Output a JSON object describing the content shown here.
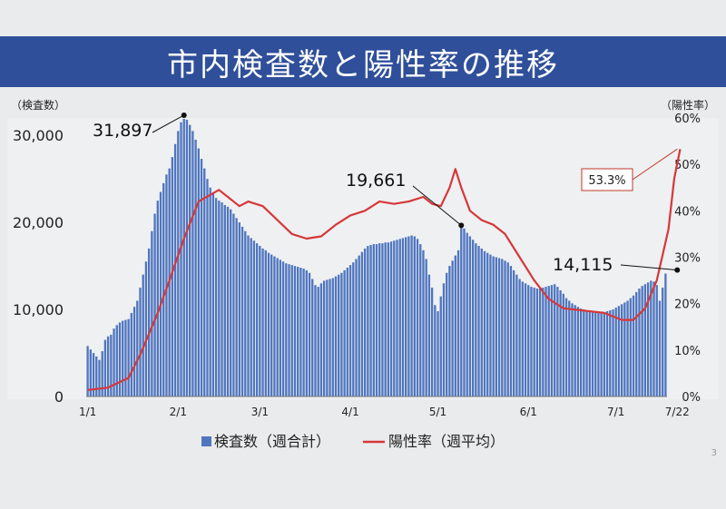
{
  "title": "市内検査数と陽性率の推移",
  "page_number": "3",
  "colors": {
    "bar": "#4f75bf",
    "line": "#d6373a",
    "title_bg": "#2f4f9a"
  },
  "chart_data": {
    "type": "bar+line",
    "title": "市内検査数と陽性率の推移",
    "left_axis_label": "（検査数）",
    "right_axis_label": "（陽性率）",
    "left_ticks": [
      "0",
      "10,000",
      "20,000",
      "30,000"
    ],
    "right_ticks": [
      "0%",
      "10%",
      "20%",
      "30%",
      "40%",
      "50%",
      "60%"
    ],
    "x_ticks": [
      "1/1",
      "2/1",
      "3/1",
      "4/1",
      "5/1",
      "6/1",
      "7/1",
      "7/22"
    ],
    "ylim_left": [
      0,
      32000
    ],
    "ylim_right": [
      0,
      0.6
    ],
    "legend": {
      "position": "bottom",
      "items": [
        {
          "kind": "bar",
          "label": "検査数（週合計）"
        },
        {
          "kind": "line",
          "label": "陽性率（週平均）"
        }
      ]
    },
    "annotations": [
      {
        "text": "31,897",
        "date_index": 33,
        "value": 31897
      },
      {
        "text": "19,661",
        "date_index": 128,
        "value": 19661
      },
      {
        "text": "14,115",
        "date_index": 202,
        "value": 14115
      },
      {
        "text": "53.3%",
        "date_index": 202,
        "value": 0.533,
        "boxed": true
      }
    ],
    "series": [
      {
        "name": "検査数（週合計）",
        "type": "bar",
        "axis": "left",
        "values": [
          5800,
          5400,
          5000,
          4600,
          4200,
          5200,
          6500,
          6900,
          7100,
          7800,
          8200,
          8500,
          8700,
          8800,
          8900,
          9600,
          10300,
          11000,
          12500,
          14000,
          15500,
          17000,
          19000,
          21000,
          22500,
          23500,
          24500,
          25500,
          26200,
          27500,
          29000,
          30500,
          31500,
          31897,
          31800,
          31200,
          30500,
          29500,
          28500,
          27300,
          26200,
          25000,
          24000,
          23300,
          22800,
          22500,
          22300,
          22000,
          21800,
          21500,
          21000,
          20500,
          20000,
          19500,
          19000,
          18500,
          18200,
          17900,
          17600,
          17300,
          17000,
          16800,
          16500,
          16300,
          16100,
          15900,
          15700,
          15500,
          15300,
          15200,
          15100,
          15000,
          14900,
          14800,
          14700,
          14500,
          14200,
          13500,
          12800,
          12600,
          13000,
          13300,
          13400,
          13500,
          13600,
          13800,
          14000,
          14200,
          14500,
          14800,
          15100,
          15400,
          15800,
          16200,
          16600,
          17000,
          17300,
          17400,
          17500,
          17500,
          17600,
          17600,
          17700,
          17700,
          17800,
          17900,
          18000,
          18100,
          18200,
          18300,
          18400,
          18500,
          18400,
          18100,
          17500,
          16800,
          15800,
          14000,
          12500,
          10500,
          9800,
          11500,
          13000,
          14200,
          15000,
          15600,
          16200,
          16800,
          19661,
          19300,
          18800,
          18400,
          18000,
          17600,
          17300,
          17000,
          16700,
          16500,
          16300,
          16100,
          16000,
          15900,
          15800,
          15600,
          15400,
          15000,
          14500,
          14000,
          13500,
          13200,
          13000,
          12800,
          12600,
          12500,
          12400,
          12400,
          12500,
          12600,
          12700,
          12800,
          12900,
          12600,
          12200,
          11800,
          11300,
          11000,
          10700,
          10500,
          10300,
          10100,
          10000,
          9900,
          9800,
          9700,
          9700,
          9600,
          9600,
          9700,
          9800,
          9900,
          10000,
          10200,
          10400,
          10600,
          10800,
          11000,
          11300,
          11600,
          12000,
          12400,
          12700,
          12900,
          13100,
          13300,
          13200,
          12800,
          11000,
          12500,
          14115
        ]
      },
      {
        "name": "陽性率（週平均）",
        "type": "line",
        "axis": "right",
        "values": [
          [
            0,
            0.014
          ],
          [
            7,
            0.019
          ],
          [
            14,
            0.04
          ],
          [
            18,
            0.09
          ],
          [
            24,
            0.18
          ],
          [
            28,
            0.25
          ],
          [
            33,
            0.34
          ],
          [
            38,
            0.42
          ],
          [
            45,
            0.445
          ],
          [
            48,
            0.43
          ],
          [
            52,
            0.41
          ],
          [
            55,
            0.42
          ],
          [
            60,
            0.41
          ],
          [
            65,
            0.38
          ],
          [
            70,
            0.35
          ],
          [
            75,
            0.34
          ],
          [
            80,
            0.345
          ],
          [
            85,
            0.37
          ],
          [
            90,
            0.39
          ],
          [
            95,
            0.4
          ],
          [
            100,
            0.42
          ],
          [
            105,
            0.415
          ],
          [
            110,
            0.42
          ],
          [
            115,
            0.43
          ],
          [
            118,
            0.415
          ],
          [
            121,
            0.41
          ],
          [
            124,
            0.45
          ],
          [
            126,
            0.49
          ],
          [
            128,
            0.45
          ],
          [
            131,
            0.4
          ],
          [
            135,
            0.38
          ],
          [
            139,
            0.37
          ],
          [
            143,
            0.35
          ],
          [
            148,
            0.3
          ],
          [
            153,
            0.25
          ],
          [
            158,
            0.21
          ],
          [
            163,
            0.19
          ],
          [
            170,
            0.185
          ],
          [
            177,
            0.18
          ],
          [
            183,
            0.165
          ],
          [
            187,
            0.165
          ],
          [
            191,
            0.19
          ],
          [
            195,
            0.25
          ],
          [
            199,
            0.36
          ],
          [
            201,
            0.47
          ],
          [
            203,
            0.533
          ]
        ]
      }
    ]
  }
}
